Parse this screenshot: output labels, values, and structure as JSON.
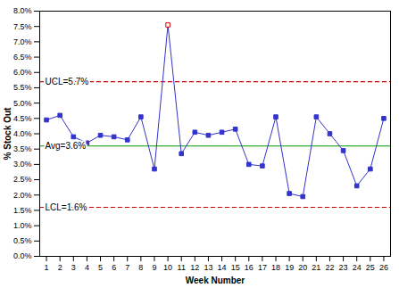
{
  "chart_data": {
    "type": "line",
    "xlabel": "Week Number",
    "ylabel": "% Stock Out",
    "x": [
      1,
      2,
      3,
      4,
      5,
      6,
      7,
      8,
      9,
      10,
      11,
      12,
      13,
      14,
      15,
      16,
      17,
      18,
      19,
      20,
      21,
      22,
      23,
      24,
      25,
      26
    ],
    "series": [
      {
        "name": "% Stock Out",
        "color": "#3333cc",
        "marker": "square",
        "line_style": "solid",
        "values": [
          4.45,
          4.6,
          3.9,
          3.7,
          3.95,
          3.9,
          3.8,
          4.55,
          2.85,
          7.55,
          3.35,
          4.05,
          3.95,
          4.05,
          4.15,
          3.0,
          2.95,
          4.55,
          2.05,
          1.95,
          4.55,
          4.0,
          3.45,
          2.3,
          2.85,
          4.5
        ],
        "colors": [
          "#3333cc",
          "#3333cc",
          "#3333cc",
          "#3333cc",
          "#3333cc",
          "#3333cc",
          "#3333cc",
          "#3333cc",
          "#3333cc",
          "#cc0000",
          "#3333cc",
          "#3333cc",
          "#3333cc",
          "#3333cc",
          "#3333cc",
          "#3333cc",
          "#3333cc",
          "#3333cc",
          "#3333cc",
          "#3333cc",
          "#3333cc",
          "#3333cc",
          "#3333cc",
          "#3333cc",
          "#3333cc",
          "#3333cc"
        ]
      }
    ],
    "reference_lines": [
      {
        "label": "UCL=5.7%",
        "value": 5.7,
        "color": "#cc0000",
        "line_style": "dashed"
      },
      {
        "label": "Avg=3.6%",
        "value": 3.6,
        "color": "#009900",
        "line_style": "solid"
      },
      {
        "label": "LCL=1.6%",
        "value": 1.6,
        "color": "#cc0000",
        "line_style": "dashed"
      }
    ],
    "xlim": [
      0.5,
      26.5
    ],
    "xticks": [
      1,
      2,
      3,
      4,
      5,
      6,
      7,
      8,
      9,
      10,
      11,
      12,
      13,
      14,
      15,
      16,
      17,
      18,
      19,
      20,
      21,
      22,
      23,
      24,
      25,
      26
    ],
    "ylim": [
      0,
      8
    ],
    "yticks": [
      {
        "value": 0,
        "label": "0.0%"
      },
      {
        "value": 0.5,
        "label": "0.5%"
      },
      {
        "value": 1,
        "label": "1.0%"
      },
      {
        "value": 1.5,
        "label": "1.5%"
      },
      {
        "value": 2,
        "label": "2.0%"
      },
      {
        "value": 2.5,
        "label": "2.5%"
      },
      {
        "value": 3,
        "label": "3.0%"
      },
      {
        "value": 3.5,
        "label": "3.5%"
      },
      {
        "value": 4,
        "label": "4.0%"
      },
      {
        "value": 4.5,
        "label": "4.5%"
      },
      {
        "value": 5,
        "label": "5.0%"
      },
      {
        "value": 5.5,
        "label": "5.5%"
      },
      {
        "value": 6,
        "label": "6.0%"
      },
      {
        "value": 6.5,
        "label": "6.5%"
      },
      {
        "value": 7,
        "label": "7.0%"
      },
      {
        "value": 7.5,
        "label": "7.5%"
      },
      {
        "value": 8,
        "label": "8.0%"
      }
    ],
    "grid": false
  }
}
